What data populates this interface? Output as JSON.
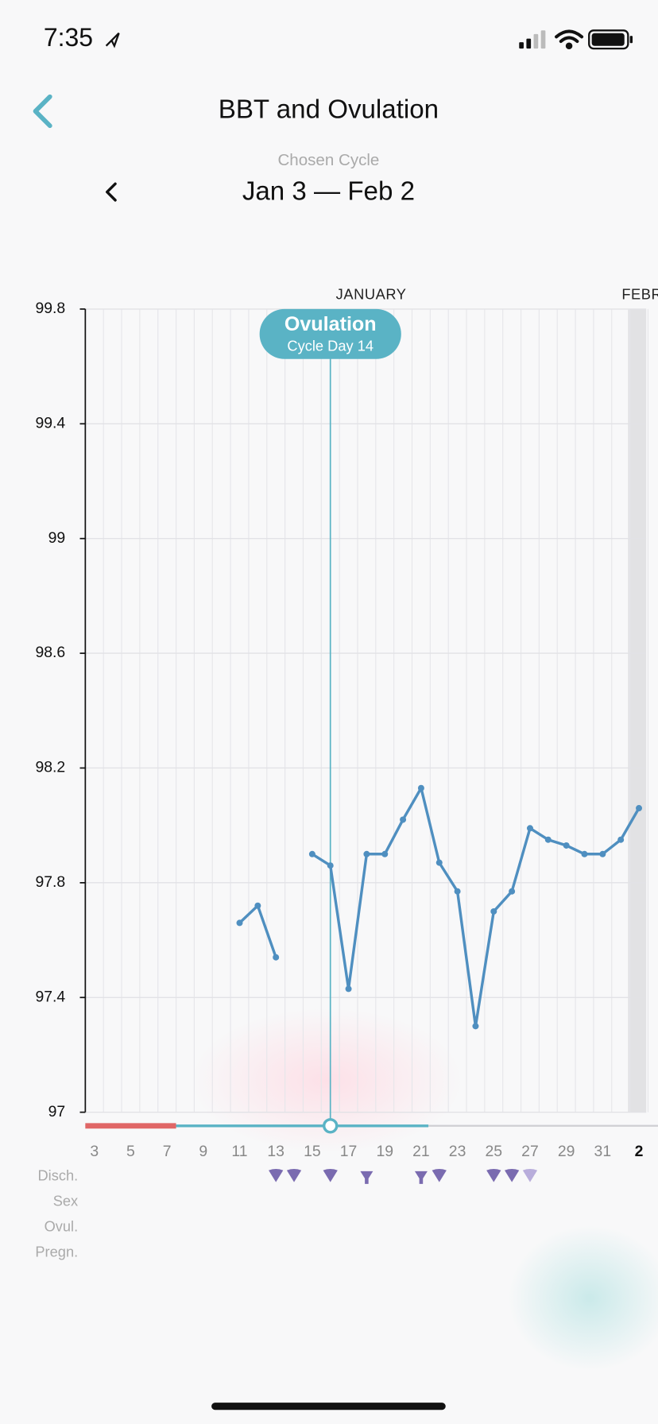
{
  "status": {
    "time": "7:35"
  },
  "header": {
    "title": "BBT and Ovulation",
    "cycle_label": "Chosen Cycle",
    "cycle": "Jan 3 — Feb 2"
  },
  "chart_data": {
    "type": "line",
    "months": [
      "JANUARY",
      "FEBRUARY"
    ],
    "categories": [
      "3",
      null,
      "5",
      null,
      "7",
      null,
      "9",
      null,
      "11",
      null,
      "13",
      null,
      "15",
      null,
      "17",
      null,
      "19",
      null,
      "21",
      null,
      "23",
      null,
      "25",
      null,
      "27",
      null,
      "29",
      null,
      "31",
      null,
      "2"
    ],
    "values": [
      null,
      null,
      null,
      null,
      null,
      null,
      null,
      null,
      97.66,
      97.72,
      97.54,
      null,
      97.9,
      97.86,
      97.43,
      97.9,
      97.9,
      98.02,
      98.13,
      97.87,
      97.77,
      97.3,
      97.7,
      97.77,
      97.99,
      97.95,
      97.93,
      97.9,
      97.9,
      97.95,
      98.06
    ],
    "color": "#4f8fc0",
    "ylim": [
      97,
      99.8
    ],
    "yticks": [
      97,
      97.4,
      97.8,
      98.2,
      98.6,
      99,
      99.4,
      99.8
    ],
    "grid": true,
    "annotation": {
      "title": "Ovulation",
      "subtitle": "Cycle Day 14"
    }
  },
  "rows": [
    "Disch.",
    "Sex",
    "Ovul.",
    "Pregn."
  ]
}
